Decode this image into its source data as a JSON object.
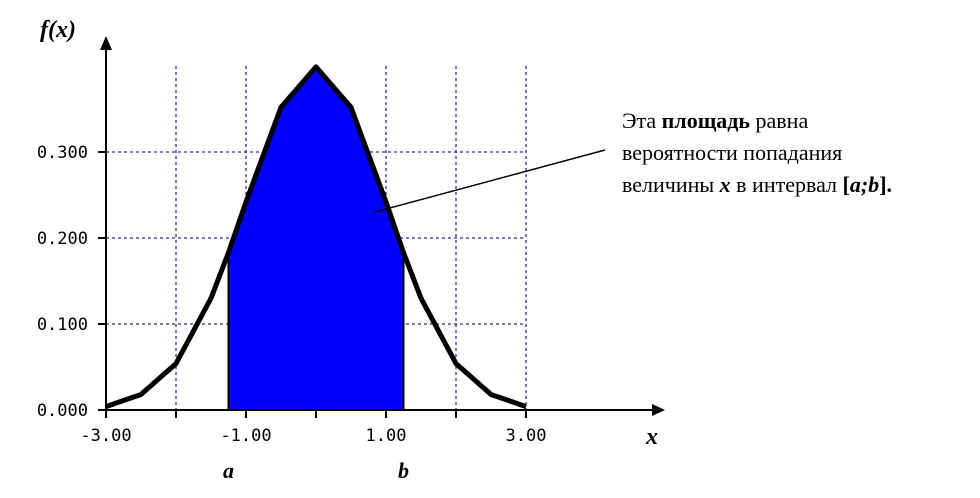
{
  "chart_data": {
    "type": "area",
    "title": "",
    "xlabel": "x",
    "ylabel": "f(x)",
    "xlim": [
      -3,
      3
    ],
    "ylim": [
      0,
      0.4
    ],
    "grid": true,
    "x_ticks": [
      "-3.00",
      "-1.00",
      "1.00",
      "3.00"
    ],
    "y_ticks": [
      "0.000",
      "0.100",
      "0.200",
      "0.300"
    ],
    "curve": {
      "x": [
        -3.0,
        -2.5,
        -2.0,
        -1.5,
        -1.25,
        -1.0,
        -0.5,
        0.0,
        0.5,
        1.0,
        1.25,
        1.5,
        2.0,
        2.5,
        3.0
      ],
      "y": [
        0.004,
        0.018,
        0.054,
        0.13,
        0.183,
        0.242,
        0.352,
        0.399,
        0.352,
        0.242,
        0.183,
        0.13,
        0.054,
        0.018,
        0.004
      ]
    },
    "shaded_interval": {
      "a": -1.25,
      "b": 1.25,
      "color": "#0000ff"
    },
    "interval_labels": {
      "a": "a",
      "b": "b"
    },
    "annotation": {
      "line1_pre": "Эта ",
      "line1_bold": "площадь",
      "line1_post": " равна",
      "line2": "вероятности попадания",
      "line3_pre": "величины ",
      "line3_var": "x",
      "line3_mid": " в интервал ",
      "line3_bracket_open": "[",
      "line3_interval": "a;b",
      "line3_bracket_close": "]."
    }
  }
}
